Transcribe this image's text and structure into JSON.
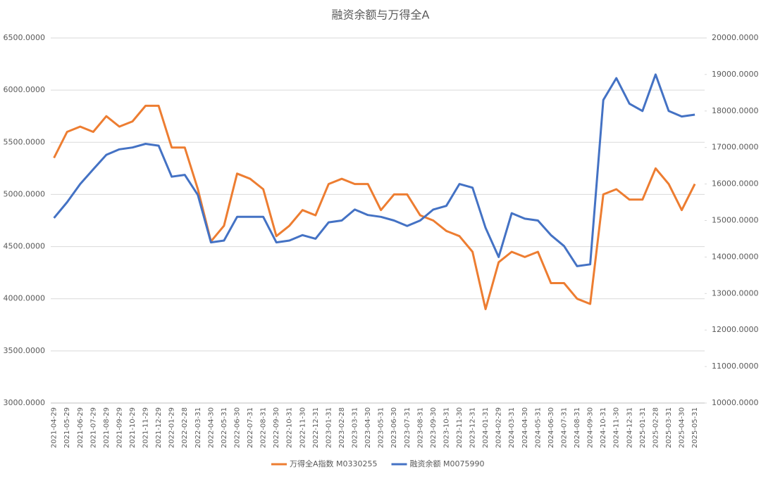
{
  "chart_data": {
    "type": "line",
    "title": "融资余额与万得全A",
    "x": [
      "2021-04-29",
      "2021-05-29",
      "2021-06-29",
      "2021-07-29",
      "2021-08-29",
      "2021-09-29",
      "2021-10-29",
      "2021-11-29",
      "2021-12-29",
      "2022-01-29",
      "2022-02-28",
      "2022-03-31",
      "2022-04-30",
      "2022-05-31",
      "2022-06-30",
      "2022-07-31",
      "2022-08-31",
      "2022-09-30",
      "2022-10-31",
      "2022-11-30",
      "2022-12-31",
      "2023-01-31",
      "2023-02-28",
      "2023-03-31",
      "2023-04-30",
      "2023-05-31",
      "2023-06-30",
      "2023-07-31",
      "2023-08-31",
      "2023-09-30",
      "2023-10-31",
      "2023-11-30",
      "2023-12-31",
      "2024-01-31",
      "2024-02-29",
      "2024-03-31",
      "2024-04-30",
      "2024-05-31",
      "2024-06-30",
      "2024-07-31",
      "2024-08-31",
      "2024-09-30",
      "2024-10-31",
      "2024-11-30",
      "2024-12-31",
      "2025-01-31",
      "2025-02-28",
      "2025-03-31",
      "2025-04-30",
      "2025-05-31"
    ],
    "series": [
      {
        "name": "万得全A指数 M0330255",
        "color": "#ed7d31",
        "axis": "y",
        "values": [
          5350,
          5600,
          5650,
          5600,
          5750,
          5650,
          5700,
          5850,
          5850,
          5450,
          5450,
          5050,
          4550,
          4700,
          5200,
          5150,
          5050,
          4600,
          4700,
          4850,
          4800,
          5100,
          5150,
          5100,
          5100,
          4850,
          5000,
          5000,
          4800,
          4750,
          4650,
          4600,
          4450,
          3900,
          4350,
          4450,
          4400,
          4450,
          4150,
          4150,
          4000,
          3950,
          5000,
          5050,
          4950,
          4950,
          5250,
          5100,
          4850,
          5100
        ]
      },
      {
        "name": "融资余额 M0075990",
        "color": "#4472c4",
        "axis": "y2",
        "values": [
          15070,
          15500,
          16000,
          16400,
          16800,
          16950,
          17000,
          17100,
          17050,
          16200,
          16250,
          15700,
          14400,
          14450,
          15100,
          15100,
          15100,
          14400,
          14450,
          14600,
          14500,
          14950,
          15000,
          15300,
          15150,
          15100,
          15000,
          14850,
          15000,
          15300,
          15400,
          16000,
          15900,
          14800,
          14000,
          15200,
          15050,
          15000,
          14600,
          14300,
          13750,
          13800,
          18300,
          18900,
          18200,
          18000,
          19000,
          18000,
          17850,
          17900
        ]
      }
    ],
    "ylim": [
      3000,
      6500
    ],
    "yticks": [
      {
        "value": 3000,
        "label": "3000.0000"
      },
      {
        "value": 3500,
        "label": "3500.0000"
      },
      {
        "value": 4000,
        "label": "4000.0000"
      },
      {
        "value": 4500,
        "label": "4500.0000"
      },
      {
        "value": 5000,
        "label": "5000.0000"
      },
      {
        "value": 5500,
        "label": "5500.0000"
      },
      {
        "value": 6000,
        "label": "6000.0000"
      },
      {
        "value": 6500,
        "label": "6500.0000"
      }
    ],
    "y2lim": [
      10000,
      20000
    ],
    "y2ticks": [
      {
        "value": 10000,
        "label": "10000.0000"
      },
      {
        "value": 11000,
        "label": "11000.0000"
      },
      {
        "value": 12000,
        "label": "12000.0000"
      },
      {
        "value": 13000,
        "label": "13000.0000"
      },
      {
        "value": 14000,
        "label": "14000.0000"
      },
      {
        "value": 15000,
        "label": "15000.0000"
      },
      {
        "value": 16000,
        "label": "16000.0000"
      },
      {
        "value": 17000,
        "label": "17000.0000"
      },
      {
        "value": 18000,
        "label": "18000.0000"
      },
      {
        "value": 19000,
        "label": "19000.0000"
      },
      {
        "value": 20000,
        "label": "20000.0000"
      }
    ],
    "grid": true,
    "legend": "bottom"
  }
}
